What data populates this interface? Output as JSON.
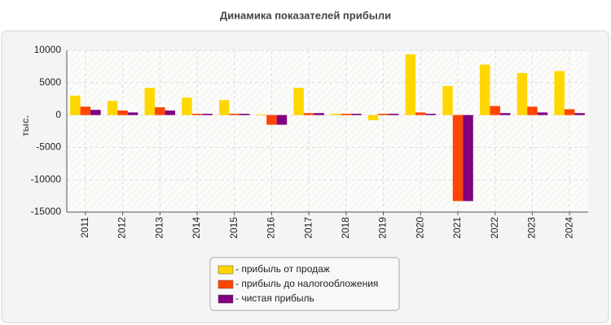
{
  "chart_data": {
    "type": "bar",
    "title": "Динамика показателей прибыли",
    "ylabel": "тыс.",
    "categories": [
      "2011",
      "2012",
      "2013",
      "2014",
      "2015",
      "2016",
      "2017",
      "2018",
      "2019",
      "2020",
      "2021",
      "2022",
      "2023",
      "2024"
    ],
    "series": [
      {
        "name": "- прибыль от продаж",
        "color": "#ffd700",
        "values": [
          3000,
          2200,
          4200,
          2700,
          2300,
          100,
          4200,
          200,
          -800,
          9400,
          4500,
          7800,
          6500,
          6800
        ]
      },
      {
        "name": "- прибыль до налогообложения",
        "color": "#ff4500",
        "values": [
          1300,
          700,
          1200,
          200,
          200,
          -1500,
          300,
          200,
          200,
          400,
          -13300,
          1400,
          1300,
          900
        ]
      },
      {
        "name": "- чистая прибыль",
        "color": "#800080",
        "values": [
          800,
          400,
          700,
          200,
          200,
          -1500,
          300,
          200,
          200,
          200,
          -13300,
          300,
          400,
          300
        ]
      }
    ],
    "ylim": [
      -15000,
      10000
    ],
    "yticks": [
      -15000,
      -10000,
      -5000,
      0,
      5000,
      10000
    ],
    "grid": true
  }
}
